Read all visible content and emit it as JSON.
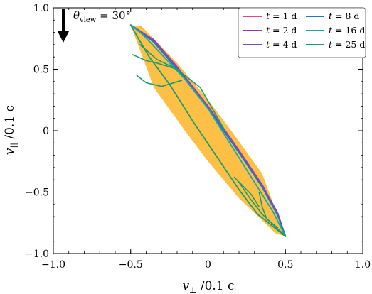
{
  "chart_data": {
    "type": "line",
    "xlabel_symbol": "v",
    "xlabel_sub": "⊥",
    "xlabel_rest": " /0.1 c",
    "ylabel_symbol": "v",
    "ylabel_sub": "||",
    "ylabel_rest": " /0.1 c",
    "xlim": [
      -1.0,
      1.0
    ],
    "ylim": [
      -1.0,
      1.0
    ],
    "xticks": [
      -1.0,
      -0.5,
      0,
      0.5,
      1.0
    ],
    "yticks": [
      -1.0,
      -0.5,
      0,
      0.5,
      1.0
    ],
    "xtick_labels": [
      "−1.0",
      "−0.5",
      "0",
      "0.5",
      "1.0"
    ],
    "ytick_labels": [
      "−1.0",
      "−0.5",
      "0",
      "0.5",
      "1.0"
    ],
    "annotation": {
      "theta_symbol": "θ",
      "theta_sub": "view",
      "text": " = 30°"
    },
    "legend_position": "top-right",
    "shaded_region": {
      "color": "#fdbf45",
      "points": [
        [
          -0.5,
          0.86
        ],
        [
          -0.43,
          0.85
        ],
        [
          -0.2,
          0.55
        ],
        [
          0.0,
          0.25
        ],
        [
          0.15,
          0.0
        ],
        [
          0.35,
          -0.35
        ],
        [
          0.5,
          -0.86
        ],
        [
          0.44,
          -0.84
        ],
        [
          0.2,
          -0.55
        ],
        [
          0.0,
          -0.25
        ],
        [
          -0.15,
          0.0
        ],
        [
          -0.35,
          0.35
        ]
      ]
    },
    "series": [
      {
        "name_t": "t",
        "name_val": " = 1 d",
        "color": "#e8418a",
        "width": 1.8,
        "x": [
          -0.5,
          -0.35,
          -0.2,
          0.0,
          0.2,
          0.35,
          0.45,
          0.5
        ],
        "y": [
          0.86,
          0.74,
          0.52,
          0.2,
          -0.16,
          -0.44,
          -0.67,
          -0.86
        ]
      },
      {
        "name_t": "t",
        "name_val": " = 2 d",
        "color": "#9b2fae",
        "width": 1.8,
        "x": [
          -0.5,
          -0.35,
          -0.2,
          0.0,
          0.2,
          0.35,
          0.45,
          0.5
        ],
        "y": [
          0.86,
          0.735,
          0.515,
          0.195,
          -0.165,
          -0.445,
          -0.675,
          -0.86
        ]
      },
      {
        "name_t": "t",
        "name_val": " = 4 d",
        "color": "#5a5ac8",
        "width": 1.8,
        "x": [
          -0.5,
          -0.35,
          -0.2,
          0.0,
          0.2,
          0.35,
          0.45,
          0.5
        ],
        "y": [
          0.86,
          0.73,
          0.51,
          0.19,
          -0.17,
          -0.45,
          -0.68,
          -0.86
        ]
      },
      {
        "name_t": "t",
        "name_val": " = 8 d",
        "color": "#1f78c8",
        "width": 1.8,
        "x": [
          -0.5,
          -0.35,
          -0.2,
          0.0,
          0.2,
          0.35,
          0.45,
          0.5
        ],
        "y": [
          0.86,
          0.72,
          0.5,
          0.18,
          -0.18,
          -0.46,
          -0.69,
          -0.86
        ]
      },
      {
        "name_t": "t",
        "name_val": " = 16 d",
        "color": "#17a8a8",
        "width": 1.8,
        "x": [
          -0.5,
          -0.42,
          -0.3,
          -0.15,
          0.0,
          0.15,
          0.3,
          0.42,
          0.5
        ],
        "y": [
          0.86,
          0.78,
          0.62,
          0.42,
          0.18,
          -0.12,
          -0.42,
          -0.66,
          -0.86
        ]
      },
      {
        "name_t": "t",
        "name_val": " = 25 d",
        "color": "#1a9e6e",
        "width": 1.8,
        "x": [
          -0.5,
          -0.45,
          -0.38,
          -0.25,
          -0.1,
          0.05,
          0.2,
          0.32,
          0.42,
          0.5
        ],
        "y": [
          0.86,
          0.75,
          0.6,
          0.38,
          0.08,
          -0.2,
          -0.48,
          -0.68,
          -0.78,
          -0.86
        ]
      }
    ],
    "inner_curves": [
      {
        "color": "#1a9e6e",
        "x": [
          -0.49,
          -0.4,
          -0.33,
          -0.2
        ],
        "y": [
          0.62,
          0.57,
          0.55,
          0.5
        ]
      },
      {
        "color": "#1a9e6e",
        "x": [
          -0.46,
          -0.4,
          -0.3,
          -0.17
        ],
        "y": [
          0.45,
          0.39,
          0.36,
          0.41
        ]
      },
      {
        "color": "#1a9e6e",
        "x": [
          -0.44,
          -0.33,
          -0.2,
          -0.05,
          0.1
        ],
        "y": [
          0.7,
          0.58,
          0.5,
          0.35,
          0.02
        ]
      },
      {
        "color": "#1a9e6e",
        "x": [
          0.17,
          0.28,
          0.33
        ],
        "y": [
          -0.38,
          -0.52,
          -0.62
        ]
      },
      {
        "color": "#1a9e6e",
        "x": [
          0.33,
          0.35,
          0.38,
          0.45
        ],
        "y": [
          -0.5,
          -0.62,
          -0.72,
          -0.79
        ]
      },
      {
        "color": "#1a9e6e",
        "x": [
          0.2,
          0.27,
          0.35,
          0.45,
          0.5
        ],
        "y": [
          -0.42,
          -0.55,
          -0.68,
          -0.8,
          -0.85
        ]
      }
    ]
  }
}
